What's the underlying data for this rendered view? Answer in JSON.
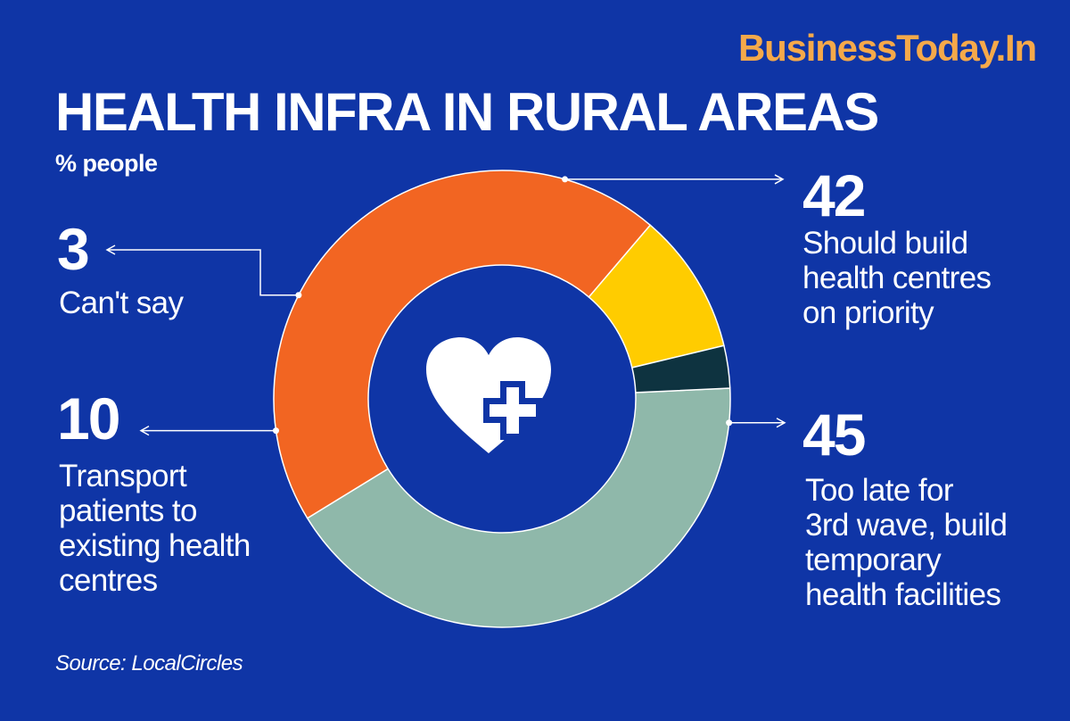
{
  "brand": "BusinessToday.In",
  "title": "HEALTH INFRA IN RURAL AREAS",
  "subtitle": "% people",
  "source": "Source: LocalCircles",
  "icon": "heart-with-medical-cross-icon",
  "colors": {
    "background": "#0f35a6",
    "brand": "#f5a94a",
    "should_build": "#8fb8aa",
    "too_late": "#f26522",
    "transport": "#ffcc00",
    "cant_say": "#0e3340"
  },
  "chart_data": {
    "type": "pie",
    "donut": true,
    "title": "HEALTH INFRA IN RURAL AREAS",
    "subtitle": "% people",
    "unit": "%",
    "slices": [
      {
        "value": 42,
        "number": "42",
        "lines": [
          "Should build",
          "health centres",
          "on priority"
        ],
        "color": "#8fb8aa"
      },
      {
        "value": 45,
        "number": "45",
        "lines": [
          "Too late for",
          "3rd wave, build",
          "temporary",
          "health facilities"
        ],
        "color": "#f26522"
      },
      {
        "value": 10,
        "number": "10",
        "lines": [
          "Transport",
          "patients to",
          "existing health",
          "centres"
        ],
        "color": "#ffcc00"
      },
      {
        "value": 3,
        "number": "3",
        "lines": [
          "Can't say"
        ],
        "color": "#0e3340"
      }
    ]
  }
}
